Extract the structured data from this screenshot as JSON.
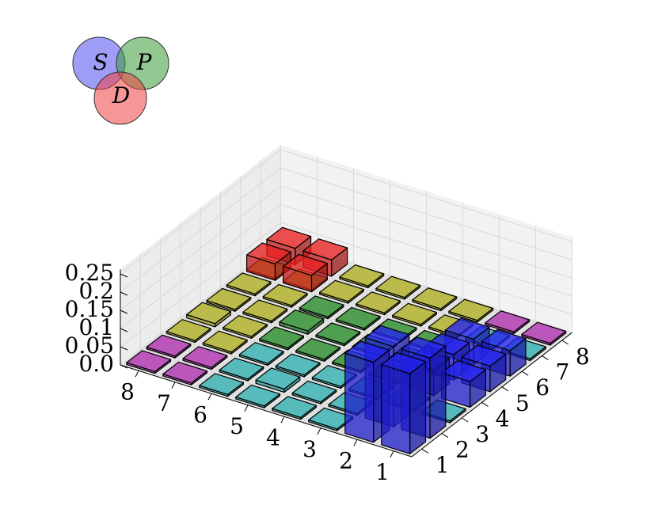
{
  "chart_data": {
    "type": "bar3d",
    "title": "",
    "xlabel": "",
    "ylabel": "",
    "zlabel": "",
    "x_categories": [
      "1",
      "2",
      "3",
      "4",
      "5",
      "6",
      "7",
      "8"
    ],
    "y_categories": [
      "1",
      "2",
      "3",
      "4",
      "5",
      "6",
      "7",
      "8"
    ],
    "z_ticks": [
      "0.0",
      "0.05",
      "0.1",
      "0.15",
      "0.2",
      "0.25"
    ],
    "zlim": [
      0,
      0.25
    ],
    "grid": true,
    "legend": {
      "type": "venn",
      "placement": "top-left",
      "sets": [
        {
          "label": "S",
          "color": "#4f4ff0"
        },
        {
          "label": "P",
          "color": "#3a9a3a"
        },
        {
          "label": "D",
          "color": "#f04040"
        }
      ]
    },
    "colors": {
      "blue": "#2222ee",
      "red": "#e82020",
      "yellow": "#b0b020",
      "green": "#268a26",
      "cyan": "#30b0b0",
      "magenta": "#b030b0"
    },
    "bars": [
      {
        "x": 1,
        "y": 1,
        "z": 0.22,
        "color": "blue"
      },
      {
        "x": 2,
        "y": 1,
        "z": 0.22,
        "color": "blue"
      },
      {
        "x": 1,
        "y": 2,
        "z": 0.22,
        "color": "blue"
      },
      {
        "x": 2,
        "y": 2,
        "z": 0.22,
        "color": "blue"
      },
      {
        "x": 1,
        "y": 4,
        "z": 0.07,
        "color": "blue"
      },
      {
        "x": 2,
        "y": 4,
        "z": 0.07,
        "color": "blue"
      },
      {
        "x": 1,
        "y": 5,
        "z": 0.07,
        "color": "blue"
      },
      {
        "x": 2,
        "y": 5,
        "z": 0.07,
        "color": "blue"
      },
      {
        "x": 1,
        "y": 6,
        "z": 0.07,
        "color": "blue"
      },
      {
        "x": 2,
        "y": 6,
        "z": 0.07,
        "color": "blue"
      },
      {
        "x": 1,
        "y": 3,
        "z": 0.005,
        "color": "cyan"
      },
      {
        "x": 2,
        "y": 3,
        "z": 0.005,
        "color": "cyan"
      },
      {
        "x": 3,
        "y": 1,
        "z": 0.005,
        "color": "cyan"
      },
      {
        "x": 4,
        "y": 1,
        "z": 0.005,
        "color": "cyan"
      },
      {
        "x": 5,
        "y": 1,
        "z": 0.005,
        "color": "cyan"
      },
      {
        "x": 6,
        "y": 1,
        "z": 0.005,
        "color": "cyan"
      },
      {
        "x": 3,
        "y": 2,
        "z": 0.005,
        "color": "cyan"
      },
      {
        "x": 4,
        "y": 2,
        "z": 0.005,
        "color": "cyan"
      },
      {
        "x": 5,
        "y": 2,
        "z": 0.009,
        "color": "cyan"
      },
      {
        "x": 6,
        "y": 2,
        "z": 0.005,
        "color": "cyan"
      },
      {
        "x": 3,
        "y": 3,
        "z": 0.005,
        "color": "cyan"
      },
      {
        "x": 4,
        "y": 3,
        "z": 0.005,
        "color": "cyan"
      },
      {
        "x": 5,
        "y": 3,
        "z": 0.005,
        "color": "cyan"
      },
      {
        "x": 6,
        "y": 3,
        "z": 0.005,
        "color": "cyan"
      },
      {
        "x": 1,
        "y": 7,
        "z": 0.005,
        "color": "cyan"
      },
      {
        "x": 2,
        "y": 7,
        "z": 0.005,
        "color": "cyan"
      },
      {
        "x": 7,
        "y": 1,
        "z": 0.005,
        "color": "magenta"
      },
      {
        "x": 8,
        "y": 1,
        "z": 0.005,
        "color": "magenta"
      },
      {
        "x": 7,
        "y": 2,
        "z": 0.005,
        "color": "magenta"
      },
      {
        "x": 8,
        "y": 2,
        "z": 0.005,
        "color": "magenta"
      },
      {
        "x": 1,
        "y": 8,
        "z": 0.005,
        "color": "magenta"
      },
      {
        "x": 2,
        "y": 8,
        "z": 0.005,
        "color": "magenta"
      },
      {
        "x": 7,
        "y": 3,
        "z": 0.005,
        "color": "yellow"
      },
      {
        "x": 8,
        "y": 3,
        "z": 0.005,
        "color": "yellow"
      },
      {
        "x": 7,
        "y": 4,
        "z": 0.005,
        "color": "yellow"
      },
      {
        "x": 8,
        "y": 4,
        "z": 0.009,
        "color": "yellow"
      },
      {
        "x": 7,
        "y": 5,
        "z": 0.005,
        "color": "yellow"
      },
      {
        "x": 8,
        "y": 5,
        "z": 0.005,
        "color": "yellow"
      },
      {
        "x": 7,
        "y": 6,
        "z": 0.005,
        "color": "yellow"
      },
      {
        "x": 8,
        "y": 6,
        "z": 0.005,
        "color": "yellow"
      },
      {
        "x": 7,
        "y": 7,
        "z": 0.005,
        "color": "yellow"
      },
      {
        "x": 8,
        "y": 7,
        "z": 0.005,
        "color": "yellow"
      },
      {
        "x": 3,
        "y": 8,
        "z": 0.005,
        "color": "yellow"
      },
      {
        "x": 4,
        "y": 8,
        "z": 0.005,
        "color": "yellow"
      },
      {
        "x": 5,
        "y": 8,
        "z": 0.005,
        "color": "yellow"
      },
      {
        "x": 6,
        "y": 8,
        "z": 0.005,
        "color": "yellow"
      },
      {
        "x": 3,
        "y": 7,
        "z": 0.005,
        "color": "yellow"
      },
      {
        "x": 4,
        "y": 7,
        "z": 0.005,
        "color": "yellow"
      },
      {
        "x": 5,
        "y": 7,
        "z": 0.005,
        "color": "yellow"
      },
      {
        "x": 6,
        "y": 7,
        "z": 0.005,
        "color": "yellow"
      },
      {
        "x": 3,
        "y": 4,
        "z": 0.005,
        "color": "green"
      },
      {
        "x": 4,
        "y": 4,
        "z": 0.005,
        "color": "green"
      },
      {
        "x": 5,
        "y": 4,
        "z": 0.005,
        "color": "green"
      },
      {
        "x": 6,
        "y": 4,
        "z": 0.005,
        "color": "green"
      },
      {
        "x": 3,
        "y": 5,
        "z": 0.005,
        "color": "green"
      },
      {
        "x": 4,
        "y": 5,
        "z": 0.005,
        "color": "green"
      },
      {
        "x": 5,
        "y": 5,
        "z": 0.005,
        "color": "green"
      },
      {
        "x": 6,
        "y": 5,
        "z": 0.009,
        "color": "green"
      },
      {
        "x": 3,
        "y": 6,
        "z": 0.005,
        "color": "green"
      },
      {
        "x": 4,
        "y": 6,
        "z": 0.005,
        "color": "green"
      },
      {
        "x": 5,
        "y": 6,
        "z": 0.005,
        "color": "green"
      },
      {
        "x": 6,
        "y": 6,
        "z": 0.005,
        "color": "green"
      },
      {
        "x": 7,
        "y": 7,
        "z": 0.045,
        "color": "red"
      },
      {
        "x": 8,
        "y": 7,
        "z": 0.045,
        "color": "red"
      },
      {
        "x": 7,
        "y": 8,
        "z": 0.045,
        "color": "red"
      },
      {
        "x": 8,
        "y": 8,
        "z": 0.045,
        "color": "red"
      }
    ]
  }
}
